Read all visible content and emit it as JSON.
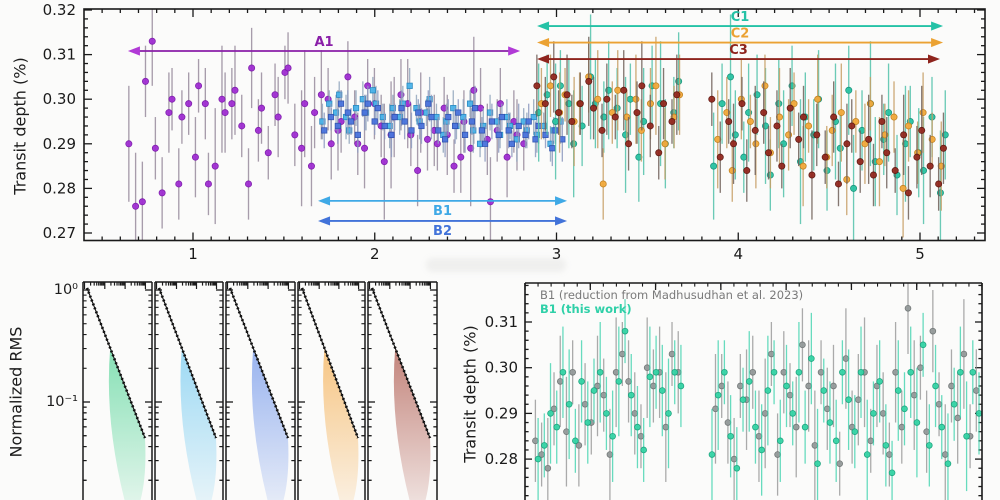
{
  "figure": {
    "background": "#fbfbfa",
    "axis_color": "#1a1a1a"
  },
  "chart_data": [
    {
      "type": "scatter-errorbar",
      "title": "",
      "xlabel": "",
      "ylabel": "Transit depth (%)",
      "xlim": [
        0.4,
        5.36
      ],
      "ylim": [
        0.2685,
        0.3205
      ],
      "xticks": [
        1,
        2,
        3,
        4,
        5
      ],
      "yticks": [
        0.27,
        0.28,
        0.29,
        0.3,
        0.31,
        0.32
      ],
      "grid": false,
      "annotations": [
        {
          "label": "A1",
          "color": "#8a1fa8",
          "head_color": "#b13ad6",
          "x1": 0.642,
          "x2": 2.8,
          "y_depth": 0.3108,
          "label_side": "above"
        },
        {
          "label": "B1",
          "color": "#3fa9e6",
          "head_color": "#3fa9e6",
          "x1": 1.688,
          "x2": 3.058,
          "y_depth": 0.2772,
          "label_side": "below"
        },
        {
          "label": "B2",
          "color": "#4273d9",
          "head_color": "#4273d9",
          "x1": 1.688,
          "x2": 3.058,
          "y_depth": 0.2727,
          "label_side": "below"
        },
        {
          "label": "C1",
          "color": "#24c2a6",
          "head_color": "#24c2a6",
          "x1": 2.893,
          "x2": 5.127,
          "y_depth": 0.3164,
          "label_side": "above"
        },
        {
          "label": "C2",
          "color": "#eba233",
          "head_color": "#eba233",
          "x1": 2.893,
          "x2": 5.127,
          "y_depth": 0.3127,
          "label_side": "above"
        },
        {
          "label": "C3",
          "color": "#8e241d",
          "head_color": "#8e241d",
          "x1": 2.893,
          "x2": 5.11,
          "y_depth": 0.309,
          "label_side": "above"
        }
      ],
      "series": [
        {
          "name": "A1",
          "marker": "circle",
          "color": "#a02ed2",
          "edge": "#7c18ab",
          "bar_color": "#998c9e",
          "x0": 0.655,
          "dx": 0.0292,
          "y_milli": [
            290,
            276,
            277,
            304,
            313,
            289,
            279,
            297,
            300,
            281,
            296,
            299,
            287,
            303,
            299,
            281,
            285,
            300,
            297,
            299,
            302,
            294,
            281,
            307,
            293,
            298,
            288,
            301,
            296,
            306,
            307,
            292,
            289,
            299,
            285,
            297,
            301,
            300,
            290,
            293,
            295,
            305,
            296,
            290,
            289,
            303,
            299,
            294,
            286,
            292,
            296,
            301,
            299,
            292,
            284,
            297,
            291,
            293,
            290,
            298,
            292,
            285,
            287,
            295,
            289,
            302,
            298,
            291,
            277,
            293,
            299,
            287,
            295,
            292,
            290
          ],
          "err_milli": [
            13,
            12,
            9,
            8,
            10,
            7,
            8,
            9,
            7,
            8,
            6,
            7,
            9,
            6,
            8,
            7
          ]
        },
        {
          "name": "B1",
          "marker": "square",
          "color": "#4ab3ea",
          "edge": "#2285bd",
          "bar_color": "#93a7bd",
          "x0": 1.72,
          "dx": 0.0295,
          "y_milli": [
            295,
            299,
            297,
            301,
            296,
            293,
            298,
            300,
            297,
            302,
            299,
            296,
            294,
            298,
            296,
            299,
            303,
            298,
            295,
            297,
            300,
            296,
            292,
            295,
            298,
            294,
            296,
            299,
            293,
            290,
            294,
            297,
            295,
            292,
            296,
            294,
            291,
            295,
            293,
            296,
            292,
            294,
            290,
            293,
            295
          ],
          "err_milli": [
            4,
            3,
            4,
            3,
            5,
            3,
            4,
            4
          ]
        },
        {
          "name": "B2",
          "marker": "square",
          "color": "#4a74dd",
          "edge": "#2c4fae",
          "bar_color": "#8f9bc0",
          "x0": 1.73,
          "dx": 0.0295,
          "y_milli": [
            293,
            296,
            294,
            299,
            297,
            295,
            292,
            297,
            299,
            295,
            298,
            294,
            292,
            296,
            298,
            295,
            293,
            297,
            294,
            299,
            296,
            293,
            291,
            296,
            294,
            297,
            292,
            295,
            298,
            293,
            290,
            295,
            292,
            296,
            293,
            290,
            294,
            292,
            295,
            291,
            294,
            292,
            289,
            293,
            291
          ],
          "err_milli": [
            4,
            3,
            4,
            3,
            5,
            3,
            4,
            4
          ]
        },
        {
          "name": "C1",
          "marker": "circle",
          "color": "#29c3a2",
          "edge": "#14927a",
          "bar_color": "#52c2ab",
          "x0": 2.91,
          "dx": 0.0385,
          "gap": [
            3.7,
            3.86
          ],
          "y_milli": [
            297,
            301,
            295,
            303,
            299,
            290,
            294,
            305,
            299,
            296,
            302,
            298,
            292,
            300,
            287,
            295,
            303,
            299,
            290,
            297,
            304,
            293,
            288,
            296,
            301,
            285,
            299,
            305,
            292,
            287,
            297,
            301,
            294,
            283,
            299,
            290,
            303,
            286,
            296,
            292,
            300,
            284,
            295,
            289,
            302,
            280,
            293,
            299,
            286,
            291,
            297,
            283,
            290,
            295,
            288,
            284,
            296,
            279,
            292
          ],
          "err_milli": [
            11,
            9,
            13,
            8,
            10,
            12,
            9,
            14,
            10,
            8
          ]
        },
        {
          "name": "C2",
          "marker": "circle",
          "color": "#f2a93b",
          "edge": "#c07f1d",
          "bar_color": "#c79f66",
          "x0": 2.925,
          "dx": 0.042,
          "gap": [
            3.7,
            3.86
          ],
          "y_milli": [
            299,
            303,
            297,
            301,
            295,
            299,
            305,
            300,
            281,
            297,
            302,
            296,
            300,
            293,
            299,
            303,
            290,
            296,
            301,
            287,
            294,
            299,
            305,
            291,
            297,
            284,
            300,
            295,
            290,
            303,
            288,
            296,
            292,
            299,
            285,
            294,
            300,
            287,
            293,
            297,
            282,
            295,
            290,
            299,
            286,
            292,
            296,
            280,
            294,
            288,
            297,
            291,
            285
          ],
          "err_milli": [
            8,
            7,
            9,
            6,
            10,
            7,
            8,
            11
          ]
        },
        {
          "name": "C3",
          "marker": "circle",
          "color": "#93291f",
          "edge": "#5f140e",
          "bar_color": "#70605a",
          "x0": 2.9,
          "dx": 0.0385,
          "gap": [
            3.7,
            3.86
          ],
          "y_milli": [
            303,
            299,
            305,
            297,
            301,
            295,
            299,
            304,
            298,
            293,
            300,
            296,
            302,
            290,
            297,
            303,
            294,
            288,
            299,
            295,
            301,
            291,
            286,
            297,
            293,
            300,
            287,
            295,
            290,
            299,
            284,
            293,
            297,
            288,
            294,
            285,
            298,
            291,
            296,
            283,
            292,
            287,
            296,
            281,
            290,
            294,
            286,
            291,
            283,
            295,
            288,
            284,
            292,
            279,
            287,
            293,
            285,
            281,
            289
          ],
          "err_milli": [
            7,
            6,
            8,
            5,
            9,
            6,
            7,
            10
          ]
        }
      ]
    },
    {
      "type": "line",
      "title": "",
      "ylabel": "Normalized RMS",
      "yscale": "log",
      "ytick_labels": [
        "10⁰",
        "10⁻¹"
      ],
      "line_color": "#111111",
      "panels": [
        {
          "fan_color": "#3ecf8a",
          "line_start_rms": 1.0,
          "line_end_rms": 0.055,
          "fan_min_rms": 0.004
        },
        {
          "fan_color": "#62c4f0",
          "line_start_rms": 1.0,
          "line_end_rms": 0.05,
          "fan_min_rms": 0.004
        },
        {
          "fan_color": "#5b86e8",
          "line_start_rms": 1.0,
          "line_end_rms": 0.05,
          "fan_min_rms": 0.004
        },
        {
          "fan_color": "#f4a43a",
          "line_start_rms": 1.0,
          "line_end_rms": 0.055,
          "fan_min_rms": 0.004
        },
        {
          "fan_color": "#a03a2c",
          "line_start_rms": 1.0,
          "line_end_rms": 0.055,
          "fan_min_rms": 0.004
        }
      ]
    },
    {
      "type": "scatter-errorbar",
      "title": "",
      "ylabel": "Transit depth (%)",
      "ylim": [
        0.271,
        0.3185
      ],
      "yticks": [
        0.28,
        0.29,
        0.3,
        0.31
      ],
      "legend": [
        {
          "label": "B1 (reduction from Madhusudhan et al. 2023)",
          "color": "#7a7a7a",
          "bold": false
        },
        {
          "label": "B1 (this work)",
          "color": "#2fd0a8",
          "bold": true
        }
      ],
      "series": [
        {
          "name": "B1-madhusudhan-2023",
          "marker": "circle",
          "color": "#949a9a",
          "edge": "#6e7474",
          "bar_color": "#8c8c8c",
          "t0": 0.012,
          "dt": 0.0138,
          "t_gap": [
            0.34,
            0.4
          ],
          "y_milli": [
            284,
            281,
            278,
            291,
            297,
            286,
            299,
            283,
            292,
            288,
            296,
            294,
            281,
            299,
            303,
            297,
            290,
            285,
            300,
            296,
            299,
            287,
            303,
            299,
            296,
            293,
            308,
            299,
            284,
            291,
            296,
            288,
            280,
            296,
            293,
            299,
            285,
            290,
            303,
            281,
            299,
            294,
            287,
            305,
            296,
            283,
            299,
            291,
            296,
            279,
            302,
            287,
            293,
            299,
            284,
            296,
            290,
            281,
            299,
            287,
            313,
            294,
            300,
            286,
            308,
            292,
            281,
            296,
            289,
            303,
            285,
            295
          ],
          "err_milli": [
            9,
            7,
            11,
            8,
            10,
            12,
            7,
            9
          ]
        },
        {
          "name": "B1-this-work",
          "marker": "circle",
          "color": "#35d3a5",
          "edge": "#17a37c",
          "bar_color": "#2fd0a8",
          "t0": 0.018,
          "dt": 0.0138,
          "t_gap": [
            0.34,
            0.4
          ],
          "y_milli": [
            280,
            283,
            290,
            287,
            299,
            292,
            284,
            297,
            288,
            295,
            299,
            290,
            285,
            297,
            308,
            294,
            287,
            282,
            298,
            299,
            295,
            290,
            299,
            296,
            293,
            310,
            297,
            288,
            281,
            294,
            299,
            285,
            278,
            293,
            297,
            287,
            282,
            295,
            299,
            284,
            296,
            290,
            299,
            287,
            302,
            279,
            295,
            288,
            284,
            299,
            293,
            286,
            299,
            281,
            290,
            297,
            283,
            277,
            295,
            291,
            299,
            288,
            305,
            283,
            296,
            287,
            279,
            292,
            299,
            285,
            299,
            290
          ],
          "err_milli": [
            9,
            7,
            11,
            8,
            10,
            12,
            7,
            9
          ]
        }
      ]
    }
  ]
}
